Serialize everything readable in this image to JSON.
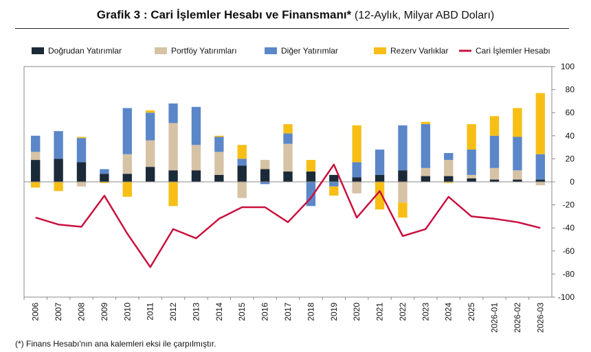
{
  "title": {
    "main": "Grafik 3 : Cari İşlemler Hesabı ve Finansmanı*",
    "sub": "(12-Aylık, Milyar ABD Doları)"
  },
  "footnote": "(*) Finans Hesabı'nın ana kalemleri eksi ile çarpılmıştır.",
  "colors": {
    "dogrudan": "#1b2a38",
    "portfoy": "#d6c2a5",
    "diger": "#5b87c9",
    "rezerv": "#f7bf16",
    "cari": "#c8103e"
  },
  "chart_data": {
    "type": "bar",
    "stacked": true,
    "title": "Grafik 3 : Cari İşlemler Hesabı ve Finansmanı*",
    "categories": [
      "2006",
      "2007",
      "2008",
      "2009",
      "2010",
      "2011",
      "2012",
      "2013",
      "2014",
      "2015",
      "2016",
      "2017",
      "2018",
      "2019",
      "2020",
      "2021",
      "2022",
      "2023",
      "2024",
      "2025",
      "2026-01",
      "2026-02",
      "2026-03"
    ],
    "ylim": [
      -100,
      100
    ],
    "yticks": [
      100,
      80,
      60,
      40,
      20,
      0,
      -20,
      -40,
      -60,
      -80,
      -100
    ],
    "legend_position": "top",
    "grid": false,
    "series": [
      {
        "name": "Doğrudan Yatırımlar",
        "type": "bar",
        "color_key": "dogrudan",
        "values": [
          19,
          20,
          17,
          7,
          7,
          13,
          10,
          10,
          6,
          14,
          11,
          9,
          9,
          6,
          4,
          6,
          10,
          5,
          5,
          3,
          2,
          2,
          2
        ]
      },
      {
        "name": "Portföy Yatırımları",
        "type": "bar",
        "color_key": "portfoy",
        "values": [
          7,
          0,
          -4,
          0,
          17,
          23,
          41,
          22,
          20,
          -14,
          8,
          24,
          0,
          0,
          -10,
          0,
          -18,
          7,
          14,
          3,
          10,
          8,
          -3
        ]
      },
      {
        "name": "Diğer Yatırımlar",
        "type": "bar",
        "color_key": "diger",
        "values": [
          14,
          24,
          21,
          4,
          40,
          24,
          17,
          33,
          13,
          6,
          -2,
          9,
          -21,
          -4,
          13,
          22,
          39,
          38,
          6,
          22,
          28,
          29,
          22
        ]
      },
      {
        "name": "Rezerv Varlıklar",
        "type": "bar",
        "color_key": "rezerv",
        "values": [
          -5,
          -8,
          1,
          -1,
          -13,
          2,
          -21,
          0,
          1,
          12,
          0,
          8,
          10,
          -8,
          32,
          -24,
          -13,
          2,
          -1,
          22,
          17,
          25,
          53
        ]
      },
      {
        "name": "Cari İşlemler Hesabı",
        "type": "line",
        "color_key": "cari",
        "values": [
          -31,
          -37,
          -39,
          -12,
          -45,
          -74,
          -41,
          -49,
          -32,
          -22,
          -22,
          -35,
          -14,
          15,
          -31,
          -8,
          -47,
          -41,
          -13,
          -30,
          -32,
          -35,
          -40
        ]
      }
    ]
  }
}
